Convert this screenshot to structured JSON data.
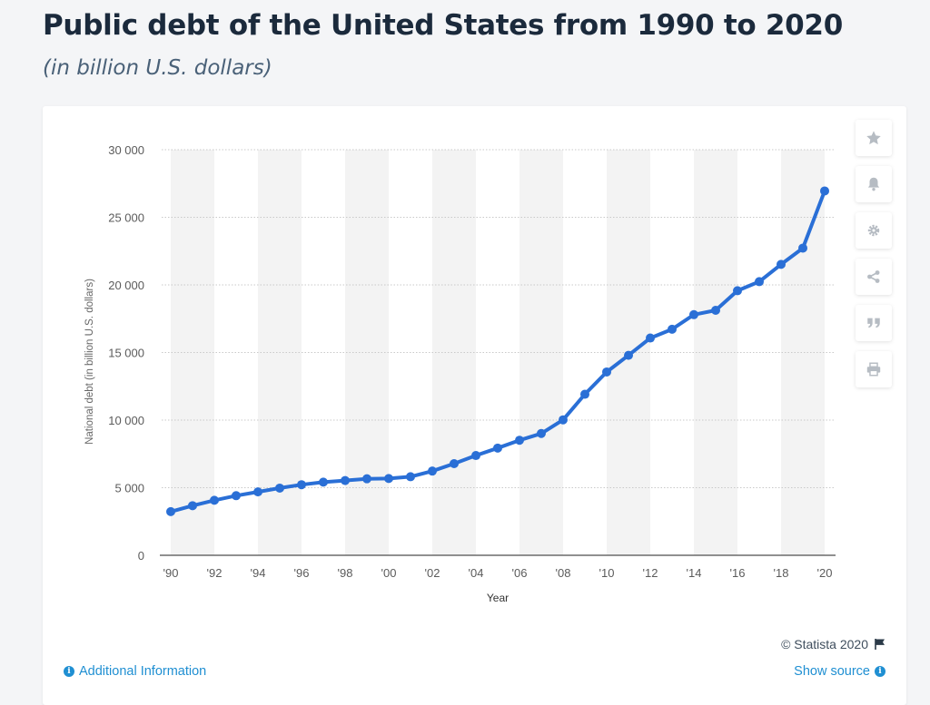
{
  "header": {
    "title": "Public debt of the United States from 1990 to 2020",
    "subtitle": "(in billion U.S. dollars)"
  },
  "toolbar": {
    "buttons": [
      {
        "icon": "star-icon"
      },
      {
        "icon": "bell-icon"
      },
      {
        "icon": "gear-icon"
      },
      {
        "icon": "share-icon"
      },
      {
        "icon": "quote-icon"
      },
      {
        "icon": "print-icon"
      }
    ]
  },
  "footer": {
    "copyright": "© Statista 2020",
    "additional_info": "Additional Information",
    "show_source": "Show source"
  },
  "colors": {
    "line": "#2a6fd6",
    "band": "#f3f3f3",
    "grid": "#c9c9c9",
    "axis_text": "#5b5b5b",
    "link": "#1f8fd2"
  },
  "chart_data": {
    "type": "line",
    "title": "",
    "xlabel": "Year",
    "ylabel": "National debt (in billion U.S. dollars)",
    "ylim": [
      0,
      30000
    ],
    "yticks": [
      0,
      5000,
      10000,
      15000,
      20000,
      25000,
      30000
    ],
    "ytick_labels": [
      "0",
      "5 000",
      "10 000",
      "15 000",
      "20 000",
      "25 000",
      "30 000"
    ],
    "xticks": [
      1990,
      1992,
      1994,
      1996,
      1998,
      2000,
      2002,
      2004,
      2006,
      2008,
      2010,
      2012,
      2014,
      2016,
      2018,
      2020
    ],
    "xtick_labels": [
      "'90",
      "'92",
      "'94",
      "'96",
      "'98",
      "'00",
      "'02",
      "'04",
      "'06",
      "'08",
      "'10",
      "'12",
      "'14",
      "'16",
      "'18",
      "'20"
    ],
    "grid": true,
    "x": [
      1990,
      1991,
      1992,
      1993,
      1994,
      1995,
      1996,
      1997,
      1998,
      1999,
      2000,
      2001,
      2002,
      2003,
      2004,
      2005,
      2006,
      2007,
      2008,
      2009,
      2010,
      2011,
      2012,
      2013,
      2014,
      2015,
      2016,
      2017,
      2018,
      2019,
      2020
    ],
    "series": [
      {
        "values": [
          3230,
          3670,
          4070,
          4410,
          4690,
          4970,
          5220,
          5410,
          5530,
          5660,
          5680,
          5810,
          6230,
          6780,
          7380,
          7930,
          8510,
          9010,
          10020,
          11910,
          13560,
          14790,
          16070,
          16720,
          17800,
          18120,
          19570,
          20240,
          21520,
          22720,
          26950
        ]
      }
    ]
  }
}
